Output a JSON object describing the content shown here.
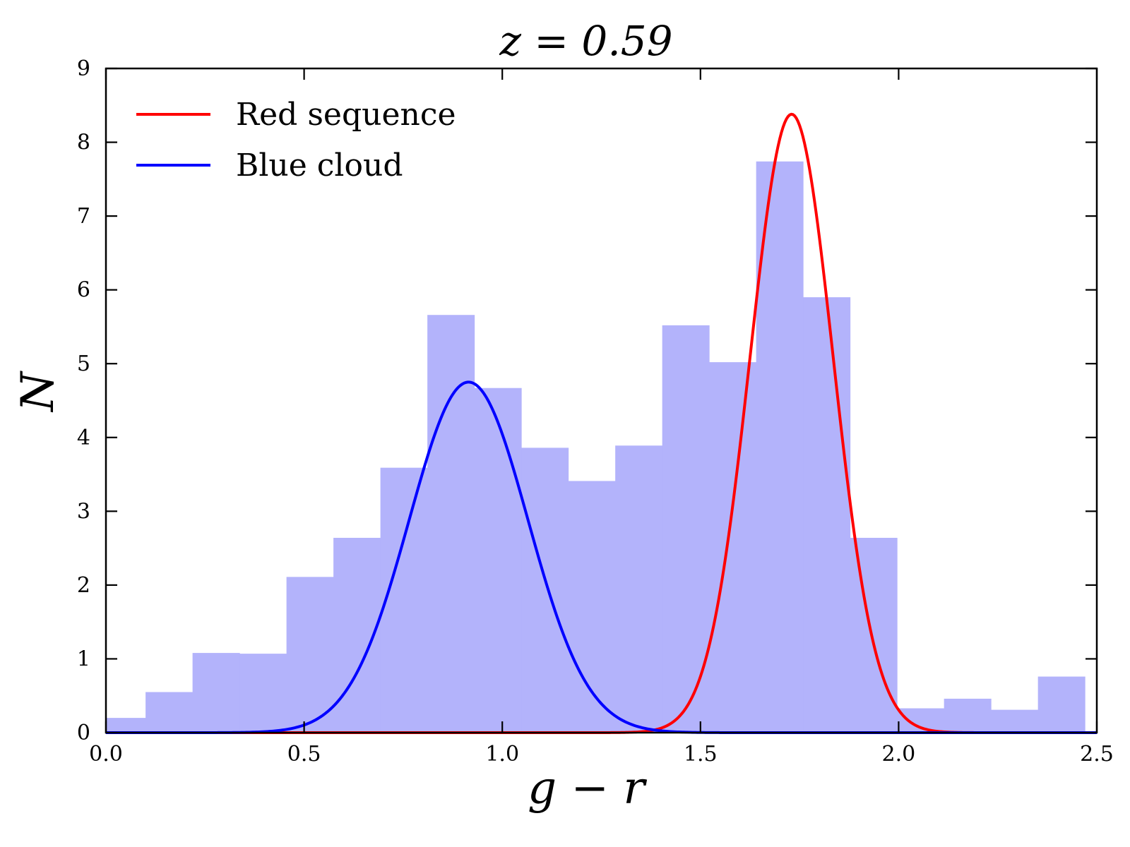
{
  "chart_data": {
    "type": "histogram",
    "title": "z = 0.59",
    "xlabel": "g − r",
    "ylabel": "N",
    "xlim": [
      0.0,
      2.5
    ],
    "ylim": [
      0,
      9
    ],
    "xticks": [
      "0.0",
      "0.5",
      "1.0",
      "1.5",
      "2.0",
      "2.5"
    ],
    "yticks": [
      "0",
      "1",
      "2",
      "3",
      "4",
      "5",
      "6",
      "7",
      "8",
      "9"
    ],
    "grid": false,
    "legend_position": "top-left",
    "histogram": {
      "color": "#b3b3fb",
      "bin_edges": [
        0.0,
        0.1,
        0.2185,
        0.337,
        0.4555,
        0.574,
        0.6925,
        0.811,
        0.9295,
        1.048,
        1.1665,
        1.285,
        1.4035,
        1.522,
        1.6405,
        1.759,
        1.8775,
        1.996,
        2.1145,
        2.233,
        2.3515,
        2.47
      ],
      "values": [
        0.2,
        0.55,
        1.08,
        1.07,
        2.11,
        2.64,
        3.59,
        5.66,
        4.67,
        3.86,
        3.41,
        3.89,
        5.52,
        5.02,
        7.74,
        5.9,
        2.64,
        0.33,
        0.46,
        0.31,
        0.76
      ]
    },
    "series": [
      {
        "name": "Red sequence",
        "color": "#ff0000",
        "type": "gaussian",
        "amplitude": 8.38,
        "mean": 1.73,
        "sigma": 0.105
      },
      {
        "name": "Blue cloud",
        "color": "#0000ff",
        "type": "gaussian",
        "amplitude": 4.75,
        "mean": 0.915,
        "sigma": 0.15
      }
    ]
  }
}
